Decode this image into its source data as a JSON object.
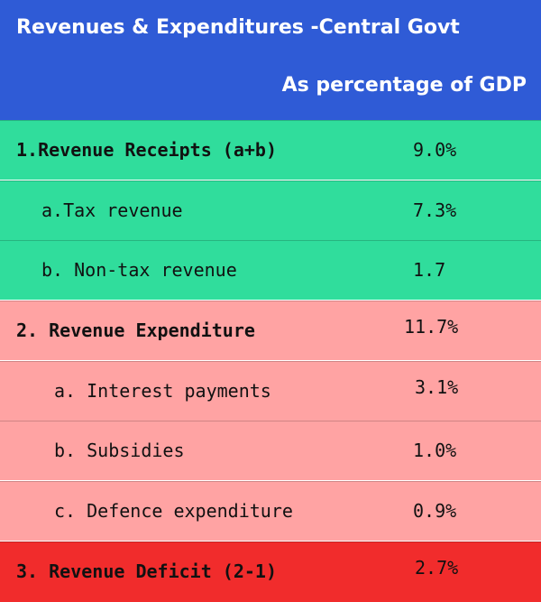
{
  "header": {
    "title": "Revenues & Expenditures -Central Govt",
    "subtitle": "As percentage of GDP"
  },
  "colors": {
    "header": "#2f5bd6",
    "receipts": "#30dd9c",
    "expenditure": "#ffa3a3",
    "deficit": "#f12c2c"
  },
  "rows": [
    {
      "label": "1.Revenue Receipts (a+b)",
      "value": "9.0%"
    },
    {
      "label": "a.Tax revenue",
      "value": "7.3%"
    },
    {
      "label": "b. Non-tax revenue",
      "value": "1.7"
    },
    {
      "label": "2. Revenue Expenditure",
      "value": "11.7%"
    },
    {
      "label": "a. Interest payments",
      "value": "3.1%"
    },
    {
      "label": "b. Subsidies",
      "value": "1.0%"
    },
    {
      "label": "c. Defence expenditure",
      "value": "0.9%"
    },
    {
      "label": "3. Revenue Deficit (2-1)",
      "value": "2.7%"
    }
  ]
}
